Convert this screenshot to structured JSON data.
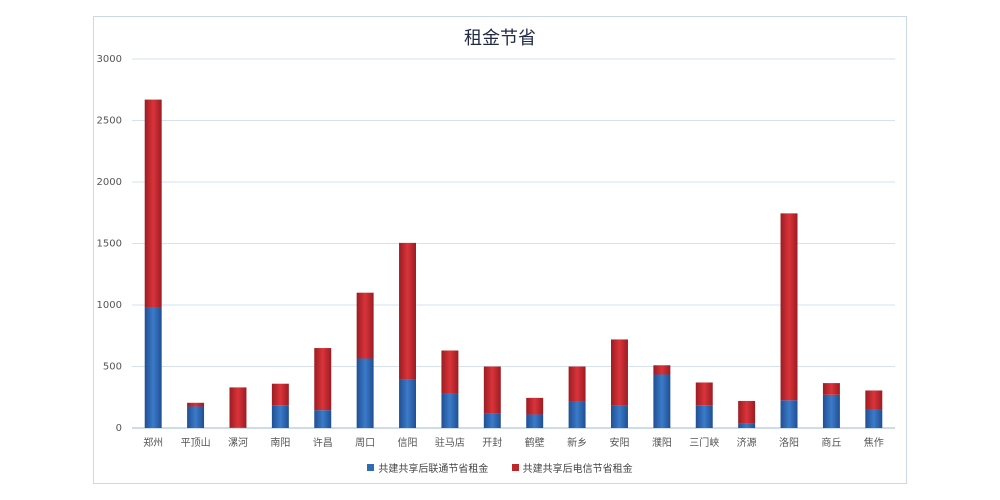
{
  "chart_data": {
    "type": "bar",
    "stacked": true,
    "title": "租金节省",
    "xlabel": "",
    "ylabel": "",
    "ylim": [
      0,
      3000
    ],
    "yticks": [
      0,
      500,
      1000,
      1500,
      2000,
      2500,
      3000
    ],
    "grid": true,
    "legend_position": "bottom",
    "categories": [
      "郑州",
      "平顶山",
      "漯河",
      "南阳",
      "许昌",
      "周口",
      "信阳",
      "驻马店",
      "开封",
      "鹤壁",
      "新乡",
      "安阳",
      "濮阳",
      "三门峡",
      "济源",
      "洛阳",
      "商丘",
      "焦作"
    ],
    "series": [
      {
        "name": "共建共享后联通节省租金",
        "color": "#2e6db6",
        "values": [
          980,
          175,
          5,
          185,
          145,
          565,
          395,
          280,
          115,
          110,
          215,
          180,
          435,
          185,
          40,
          225,
          270,
          150
        ]
      },
      {
        "name": "共建共享后电信节省租金",
        "color": "#c0272d",
        "values": [
          1690,
          30,
          325,
          175,
          505,
          535,
          1110,
          350,
          385,
          135,
          285,
          540,
          75,
          185,
          180,
          1520,
          95,
          155
        ]
      }
    ]
  }
}
